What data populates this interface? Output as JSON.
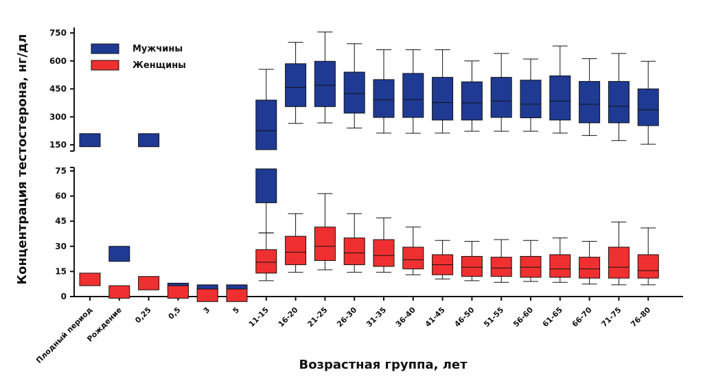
{
  "chart_data": {
    "type": "box",
    "xlabel": "Возрастная группа, лет",
    "ylabel": "Концентрация тестостерона, нг/дл",
    "y_axis_broken": true,
    "upper_ticks": [
      "150",
      "300",
      "450",
      "600",
      "750"
    ],
    "lower_ticks": [
      "0",
      "15",
      "30",
      "45",
      "60",
      "75"
    ],
    "categories": [
      "Плодный период",
      "Рождение",
      "0,25",
      "0,5",
      "3",
      "5",
      "11-15",
      "16-20",
      "21-25",
      "26-30",
      "31-35",
      "36-40",
      "41-45",
      "46-50",
      "51-55",
      "56-60",
      "61-65",
      "66-70",
      "71-75",
      "76-80"
    ],
    "legend_position": "top-left",
    "series": [
      {
        "name": "Мужчины",
        "color": "#1f3a93",
        "boxes": [
          {
            "q1": 140,
            "q3": 210
          },
          {
            "q1": 21,
            "q3": 30
          },
          {
            "q1": 140,
            "q3": 210
          },
          {
            "q1": 3,
            "q3": 8
          },
          {
            "q1": 2,
            "q3": 7
          },
          {
            "q1": 2,
            "q3": 7
          },
          {
            "q1": 56,
            "q3": 390,
            "median": 225,
            "min": 38,
            "max": 555
          },
          {
            "q1": 355,
            "q3": 585,
            "median": 458,
            "min": 265,
            "max": 700
          },
          {
            "q1": 355,
            "q3": 598,
            "median": 470,
            "min": 268,
            "max": 755
          },
          {
            "q1": 320,
            "q3": 540,
            "median": 425,
            "min": 240,
            "max": 692
          },
          {
            "q1": 297,
            "q3": 500,
            "median": 392,
            "min": 213,
            "max": 660
          },
          {
            "q1": 297,
            "q3": 533,
            "median": 393,
            "min": 212,
            "max": 660
          },
          {
            "q1": 283,
            "q3": 512,
            "median": 377,
            "min": 213,
            "max": 660
          },
          {
            "q1": 283,
            "q3": 488,
            "median": 375,
            "min": 223,
            "max": 600
          },
          {
            "q1": 297,
            "q3": 512,
            "median": 385,
            "min": 223,
            "max": 640
          },
          {
            "q1": 295,
            "q3": 497,
            "median": 368,
            "min": 223,
            "max": 610
          },
          {
            "q1": 283,
            "q3": 520,
            "median": 385,
            "min": 213,
            "max": 680
          },
          {
            "q1": 268,
            "q3": 490,
            "median": 367,
            "min": 200,
            "max": 612
          },
          {
            "q1": 268,
            "q3": 490,
            "median": 357,
            "min": 173,
            "max": 640
          },
          {
            "q1": 253,
            "q3": 450,
            "median": 338,
            "min": 153,
            "max": 598
          }
        ]
      },
      {
        "name": "Женщины",
        "color": "#f03030",
        "boxes": [
          {
            "q1": 6.5,
            "q3": 14
          },
          {
            "q1": -1,
            "q3": 6.5
          },
          {
            "q1": 4,
            "q3": 12
          },
          {
            "q1": -1,
            "q3": 6.5
          },
          {
            "q1": -3,
            "q3": 4.5
          },
          {
            "q1": -3,
            "q3": 4.5
          },
          {
            "q1": 14,
            "q3": 28,
            "median": 20.5,
            "min": 9.5,
            "max": 38
          },
          {
            "q1": 19,
            "q3": 36,
            "median": 26.5,
            "min": 14.5,
            "max": 49.5
          },
          {
            "q1": 21.5,
            "q3": 41.5,
            "median": 30,
            "min": 16,
            "max": 61.5
          },
          {
            "q1": 19,
            "q3": 35,
            "median": 26,
            "min": 14.5,
            "max": 49.5
          },
          {
            "q1": 18,
            "q3": 34,
            "median": 24.5,
            "min": 14.5,
            "max": 47
          },
          {
            "q1": 16.5,
            "q3": 29.5,
            "median": 22,
            "min": 13,
            "max": 41.5
          },
          {
            "q1": 13,
            "q3": 25,
            "median": 19,
            "min": 10.5,
            "max": 33.5
          },
          {
            "q1": 12,
            "q3": 24,
            "median": 17.5,
            "min": 9.5,
            "max": 33
          },
          {
            "q1": 12,
            "q3": 23.5,
            "median": 17,
            "min": 8.5,
            "max": 34
          },
          {
            "q1": 11.5,
            "q3": 24,
            "median": 17.5,
            "min": 9,
            "max": 33.5
          },
          {
            "q1": 11.5,
            "q3": 25,
            "median": 16.5,
            "min": 8.5,
            "max": 35
          },
          {
            "q1": 11,
            "q3": 23.5,
            "median": 16.5,
            "min": 7.5,
            "max": 33
          },
          {
            "q1": 11,
            "q3": 29.5,
            "median": 17.5,
            "min": 7,
            "max": 44.5
          },
          {
            "q1": 11,
            "q3": 25,
            "median": 15.5,
            "min": 7,
            "max": 41
          }
        ]
      }
    ]
  }
}
